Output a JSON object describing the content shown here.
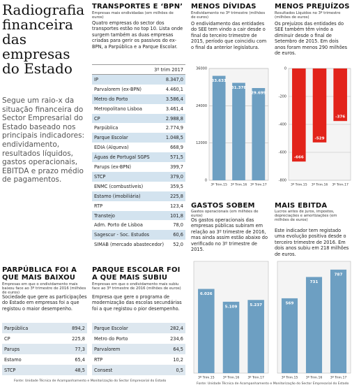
{
  "title": "Radiografia financeira das empresas do Estado",
  "intro": "Segue um raio-x da situação financeira do Sector Empresarial do Estado baseado nos principais indicadores: endividamento, resultados líquidos, gastos operacionais, EBITDA e prazo médio de pagamentos.",
  "debt_table": {
    "title": "TRANSPORTES E ‘BPN’",
    "subtitle": "Empresas mais endividadas (em milhões de euros)",
    "text": "Quatro empresas do sector dos transportes estão no top 10. Lista onde surgem também as duas empresas criadas para gerir os passivos do ex-BPN, a Parpública e a Parque Escolar.",
    "column_header": "3º trim 2017",
    "rows": [
      [
        "IP",
        "8.347,0"
      ],
      [
        "Parvalorem (ex-BPN)",
        "4.460,1"
      ],
      [
        "Metro do Porto",
        "3.586,4"
      ],
      [
        "Metropolitano Lisboa",
        "3.461,4"
      ],
      [
        "CP",
        "2.988,8"
      ],
      [
        "Parpública",
        "2.774,9"
      ],
      [
        "Parque Escolar",
        "1.048,5"
      ],
      [
        "EDIA (Alqueva)",
        "668,9"
      ],
      [
        "Águas de Portugal SGPS",
        "571,5"
      ],
      [
        "Parups (ex-BPN)",
        "399,7"
      ],
      [
        "STCP",
        "379,0"
      ],
      [
        "ENMC (combustíveis)",
        "359,5"
      ],
      [
        "Estamo (imobiliária)",
        "225,8"
      ],
      [
        "RTP",
        "123,4"
      ],
      [
        "Transtejo",
        "101,8"
      ],
      [
        "Adm. Porto de Lisboa",
        "78,0"
      ],
      [
        "Sagescur - Soc. Estudos",
        "60,6"
      ],
      [
        "SIMAB (mercado abastecedor)",
        "52,0"
      ]
    ]
  },
  "decrease_table": {
    "title": "PARPÚBLICA FOI A QUE MAIS BAIXOU",
    "subtitle": "Empresas em que o endividamento mais baixou face ao 3º trimestre de 2016 (milhões de euros)",
    "text": "Sociedade que gere as participações do Estado em empresas foi a que registou o maior desempenho.",
    "rows": [
      [
        "Parpública",
        "894,2"
      ],
      [
        "CP",
        "225,8"
      ],
      [
        "Parups",
        "77,3"
      ],
      [
        "Estamo",
        "65,4"
      ],
      [
        "STCP",
        "48,5"
      ]
    ]
  },
  "increase_table": {
    "title": "PARQUE ESCOLAR FOI A QUE MAIS SUBIU",
    "subtitle": "Empresas em que o endividamento mais subiu face ao 3º trimestre de 2016 (milhões de euros)",
    "text": "Empresa que gere o programa de modernização das escolas secundárias foi a que registou o pior desempenho.",
    "rows": [
      [
        "Parque Escolar",
        "282,4"
      ],
      [
        "Metro do Porto",
        "234,6"
      ],
      [
        "Parvalorem",
        "64,5"
      ],
      [
        "RTP",
        "10,2"
      ],
      [
        "Consest",
        "0,5"
      ]
    ]
  },
  "chart_data": [
    {
      "type": "bar",
      "title": "MENOS DÍVIDAS",
      "subtitle": "Endividamento no 3º trimestre (milhões de euros)",
      "text": "O endividamento das entidades do SEE tem vindo a cair desde o final do terceiro trimestre de 2015, período que coincidiu com o final da anterior legislatura.",
      "categories": [
        "3º Trim.15",
        "3º Trim.16",
        "3º Trim.17"
      ],
      "values": [
        33631,
        31378,
        29699
      ],
      "value_labels": [
        "33.631",
        "31.378",
        "29.699"
      ],
      "color": "#6d9fc2",
      "ylim": [
        0,
        36000
      ],
      "yticks": [
        0,
        12000,
        24000,
        36000
      ],
      "grid": true
    },
    {
      "type": "bar",
      "title": "MENOS PREJUÍZOS",
      "subtitle": "Resultados Líquidos no 3º trimestre (milhões de euros)",
      "text": "Os prejuízos das entidades do SEE também têm vindo a diminuir desde o final de Setembro de 2015. Em dois anos foram menos 290 milhões de euros.",
      "categories": [
        "3º Trim.15",
        "3º Trim.16",
        "3º Trim.17"
      ],
      "values": [
        -666,
        -529,
        -376
      ],
      "color": "#e2231a",
      "ylim": [
        -800,
        0
      ],
      "yticks": [
        0,
        -200,
        -400,
        -600,
        -800
      ],
      "grid": true
    },
    {
      "type": "bar",
      "title": "GASTOS SOBEM",
      "subtitle": "Gastos operacionais (em milhões de euros)",
      "text": "Os gastos operacionais das empresas públicas subiram em relação ao 3º trimestre de 2016, mas ainda assim estão abaixo do verificado no 3º trimestre de 2015.",
      "categories": [
        "3º Trim.15",
        "3º Trim.16",
        "3º Trim.17"
      ],
      "values": [
        6026,
        5109,
        5237
      ],
      "value_labels": [
        "6.026",
        "5.109",
        "5.237"
      ],
      "color": "#6d9fc2",
      "ylim": [
        0,
        8000
      ],
      "grid": false
    },
    {
      "type": "bar",
      "title": "MAIS EBITDA",
      "subtitle": "Lucros antes de juros, impostos, depreciações e amortizações (em milhões de euros)",
      "text": "Este indicador tem registado uma evolução positiva desde o terceiro trimestre de 2016. Em dois anos subiu em 218 milhões de euros.",
      "categories": [
        "3º Trim.15",
        "3º Trim.16",
        "3º Trim.17"
      ],
      "values": [
        569,
        731,
        787
      ],
      "color": "#6d9fc2",
      "ylim": [
        0,
        850
      ],
      "grid": false
    }
  ],
  "sources": [
    "Fonte: Unidade Técnica de Acompanhamento e Monitorização do Sector Empresarial do Estado",
    "Fonte: Unidade Técnica de Acompanhamento e Monitorização do Sector Empresarial do Estado"
  ]
}
